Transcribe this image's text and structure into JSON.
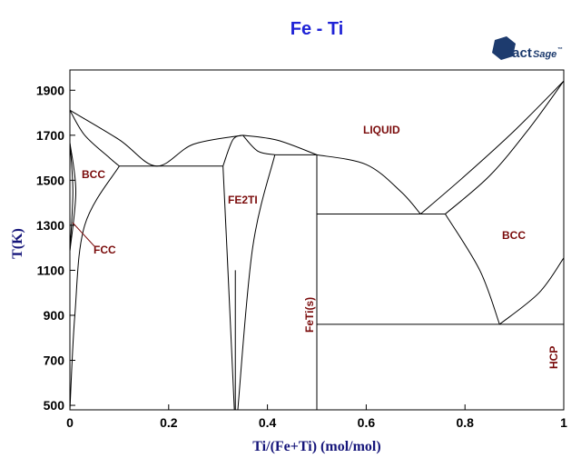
{
  "title": "Fe - Ti",
  "logo": {
    "brand": "FactSage",
    "brand_a": "Fact",
    "brand_b": "Sage",
    "tm": "™"
  },
  "axes": {
    "xlabel": "Ti/(Fe+Ti) (mol/mol)",
    "ylabel": "T(K)",
    "xlim": [
      0,
      1
    ],
    "ylim": [
      480,
      1990
    ],
    "xticks": [
      "0",
      "0.2",
      "0.4",
      "0.6",
      "0.8",
      "1"
    ],
    "xtick_values": [
      0,
      0.2,
      0.4,
      0.6,
      0.8,
      1
    ],
    "yticks": [
      "500",
      "700",
      "900",
      "1100",
      "1300",
      "1500",
      "1700",
      "1900"
    ],
    "ytick_values": [
      500,
      700,
      900,
      1100,
      1300,
      1500,
      1700,
      1900
    ]
  },
  "labels": {
    "liquid": "LIQUID",
    "bcc_fe": "BCC",
    "fcc": "FCC",
    "fe2ti": "FE2TI",
    "feti": "FeTi(s)",
    "bcc_ti": "BCC",
    "hcp": "HCP"
  },
  "chart_data": {
    "type": "phase-diagram",
    "x_units": "mole fraction Ti",
    "y_units": "K",
    "invariant_lines_K": [
      1563,
      1613,
      1350,
      860
    ],
    "line_compounds_x": [
      0.333,
      0.5
    ],
    "boundaries": [
      {
        "name": "liquidus-fe-side",
        "points": [
          [
            0,
            1811
          ],
          [
            0.1,
            1680
          ],
          [
            0.175,
            1563
          ],
          [
            0.25,
            1660
          ],
          [
            0.35,
            1700
          ]
        ]
      },
      {
        "name": "solidus-fe-side",
        "points": [
          [
            0,
            1811
          ],
          [
            0.03,
            1700
          ],
          [
            0.08,
            1600
          ],
          [
            0.1,
            1563
          ]
        ]
      },
      {
        "name": "liquidus-fe2ti-feti",
        "points": [
          [
            0.35,
            1700
          ],
          [
            0.42,
            1678
          ],
          [
            0.5,
            1613
          ]
        ]
      },
      {
        "name": "liquidus-ti-side-dome",
        "points": [
          [
            0.5,
            1613
          ],
          [
            0.6,
            1570
          ],
          [
            0.67,
            1450
          ],
          [
            0.71,
            1350
          ]
        ]
      },
      {
        "name": "liquidus-ti-side-high",
        "points": [
          [
            0.71,
            1350
          ],
          [
            0.8,
            1520
          ],
          [
            0.9,
            1720
          ],
          [
            1,
            1941
          ]
        ]
      },
      {
        "name": "solidus-ti-side",
        "points": [
          [
            0.76,
            1350
          ],
          [
            0.85,
            1520
          ],
          [
            0.93,
            1730
          ],
          [
            1,
            1941
          ]
        ]
      },
      {
        "name": "bcc-solvus",
        "points": [
          [
            0.76,
            1350
          ],
          [
            0.83,
            1100
          ],
          [
            0.87,
            860
          ]
        ]
      },
      {
        "name": "bcc-hcp-boundary",
        "points": [
          [
            0.87,
            860
          ],
          [
            0.95,
            1000
          ],
          [
            1,
            1155
          ]
        ]
      },
      {
        "name": "fe2ti-left",
        "points": [
          [
            0.31,
            1563
          ],
          [
            0.33,
            1680
          ],
          [
            0.35,
            1700
          ]
        ]
      },
      {
        "name": "fe2ti-right",
        "points": [
          [
            0.35,
            1700
          ],
          [
            0.38,
            1630
          ],
          [
            0.415,
            1613
          ]
        ]
      },
      {
        "name": "fe2ti-lower-left",
        "points": [
          [
            0.31,
            1563
          ],
          [
            0.32,
            1100
          ],
          [
            0.333,
            480
          ]
        ]
      },
      {
        "name": "fe2ti-lower-right",
        "points": [
          [
            0.415,
            1613
          ],
          [
            0.37,
            1200
          ],
          [
            0.34,
            480
          ]
        ]
      },
      {
        "name": "fe-side-solvus",
        "points": [
          [
            0.1,
            1563
          ],
          [
            0.03,
            1300
          ],
          [
            0.01,
            900
          ],
          [
            0,
            480
          ]
        ]
      },
      {
        "name": "gamma-loop",
        "points": [
          [
            0,
            1667
          ],
          [
            0.012,
            1450
          ],
          [
            0,
            1185
          ]
        ]
      },
      {
        "name": "gamma-loop-inner",
        "points": [
          [
            0,
            1667
          ],
          [
            0.006,
            1450
          ],
          [
            0,
            1185
          ]
        ]
      }
    ]
  }
}
